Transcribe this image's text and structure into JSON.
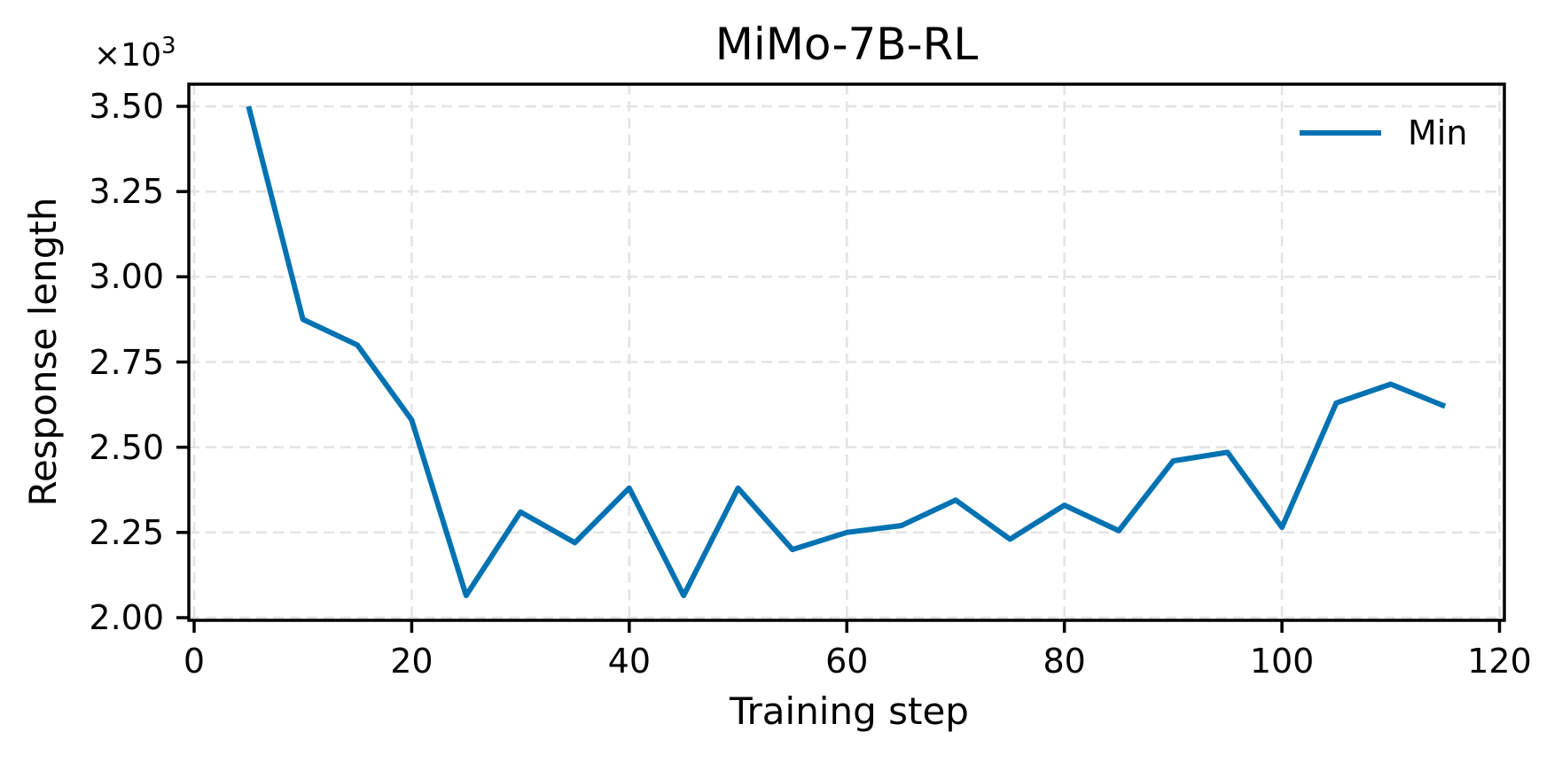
{
  "chart_data": {
    "type": "line",
    "title": "MiMo-7B-RL",
    "xlabel": "Training step",
    "ylabel": "Response length",
    "y_multiplier": "×10",
    "y_multiplier_exp": "3",
    "xlim": [
      0,
      120
    ],
    "ylim": [
      2.0,
      3.5
    ],
    "y_scale_factor": 1000,
    "grid": true,
    "legend_position": "upper right",
    "x_ticks": [
      0,
      20,
      40,
      60,
      80,
      100,
      120
    ],
    "x_tick_labels": [
      "0",
      "20",
      "40",
      "60",
      "80",
      "100",
      "120"
    ],
    "y_ticks": [
      2.0,
      2.25,
      2.5,
      2.75,
      3.0,
      3.25,
      3.5
    ],
    "y_tick_labels": [
      "2.00",
      "2.25",
      "2.50",
      "2.75",
      "3.00",
      "3.25",
      "3.50"
    ],
    "x": [
      5,
      10,
      15,
      20,
      25,
      30,
      35,
      40,
      45,
      50,
      55,
      60,
      65,
      70,
      75,
      80,
      85,
      90,
      95,
      100,
      105,
      110,
      115
    ],
    "series": [
      {
        "name": "Min",
        "color": "#0072B2",
        "values": [
          3.5,
          2.875,
          2.8,
          2.58,
          2.065,
          2.31,
          2.22,
          2.38,
          2.065,
          2.38,
          2.2,
          2.25,
          2.27,
          2.345,
          2.23,
          2.33,
          2.255,
          2.46,
          2.485,
          2.265,
          2.63,
          2.685,
          2.62
        ]
      }
    ]
  },
  "legend": {
    "items": [
      {
        "label": "Min",
        "color": "#0072B2"
      }
    ]
  },
  "style": {
    "grid_color": "#e3e3e3",
    "axis_color": "#000000"
  }
}
